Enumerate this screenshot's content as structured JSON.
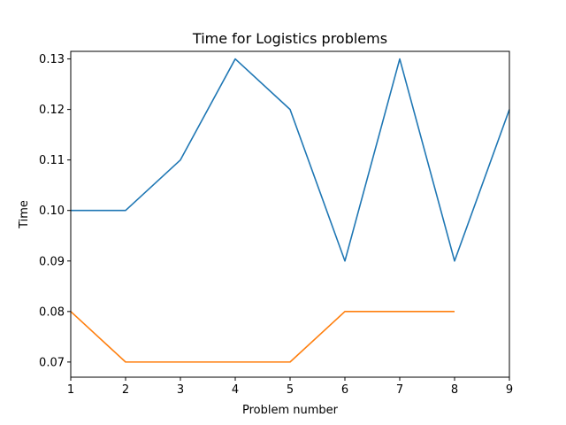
{
  "chart_data": {
    "type": "line",
    "title": "Time for Logistics problems",
    "xlabel": "Problem number",
    "ylabel": "Time",
    "xlim": [
      1,
      9
    ],
    "ylim": [
      0.067,
      0.1315
    ],
    "x_ticks": [
      "1",
      "2",
      "3",
      "4",
      "5",
      "6",
      "7",
      "8",
      "9"
    ],
    "y_ticks": [
      "0.07",
      "0.08",
      "0.09",
      "0.10",
      "0.11",
      "0.12",
      "0.13"
    ],
    "grid": false,
    "legend": "none",
    "series": [
      {
        "color": "#1f77b4",
        "x": [
          1,
          2,
          3,
          4,
          5,
          6,
          7,
          8,
          9
        ],
        "y": [
          0.1,
          0.1,
          0.11,
          0.13,
          0.12,
          0.09,
          0.13,
          0.09,
          0.12
        ]
      },
      {
        "color": "#ff7f0e",
        "x": [
          1,
          2,
          3,
          4,
          5,
          6,
          7,
          8
        ],
        "y": [
          0.08,
          0.07,
          0.07,
          0.07,
          0.07,
          0.08,
          0.08,
          0.08
        ]
      }
    ]
  }
}
